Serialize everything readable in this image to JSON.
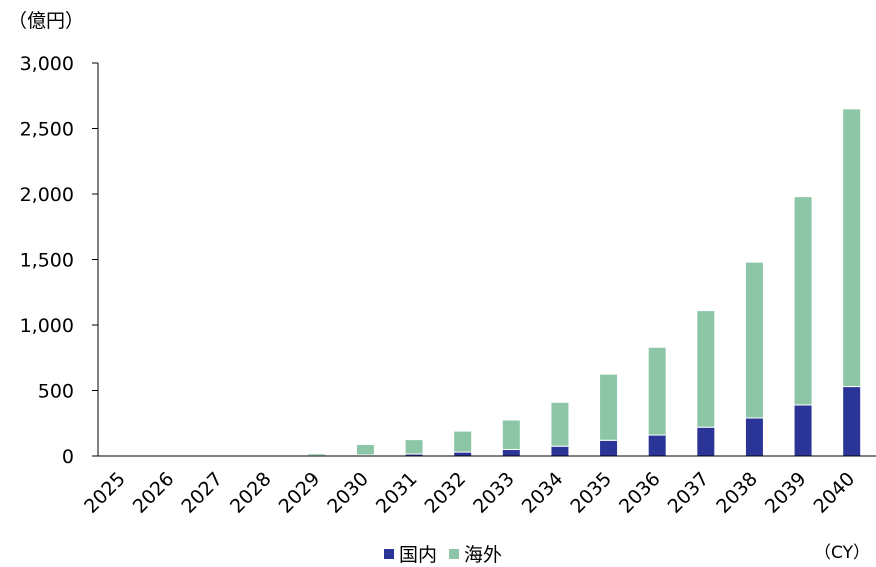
{
  "chart_data": {
    "type": "bar",
    "stacked": true,
    "y_unit_label": "（億円）",
    "x_unit_label": "（CY）",
    "categories": [
      "2025",
      "2026",
      "2027",
      "2028",
      "2029",
      "2030",
      "2031",
      "2032",
      "2033",
      "2034",
      "2035",
      "2036",
      "2037",
      "2038",
      "2039",
      "2040"
    ],
    "series": [
      {
        "name": "国内",
        "color": "#2b3497",
        "values": [
          0,
          0,
          0,
          1,
          2,
          8,
          15,
          30,
          50,
          75,
          120,
          160,
          220,
          290,
          390,
          530
        ]
      },
      {
        "name": "海外",
        "color": "#8dc6a6",
        "values": [
          0,
          0,
          1,
          3,
          15,
          80,
          110,
          160,
          225,
          335,
          505,
          670,
          890,
          1190,
          1590,
          2120
        ]
      }
    ],
    "ylim": [
      0,
      3000
    ],
    "yticks": [
      0,
      500,
      1000,
      1500,
      2000,
      2500,
      3000
    ],
    "ytick_labels": [
      "0",
      "500",
      "1,000",
      "1,500",
      "2,000",
      "2,500",
      "3,000"
    ],
    "grid": false,
    "legend_position": "bottom"
  }
}
